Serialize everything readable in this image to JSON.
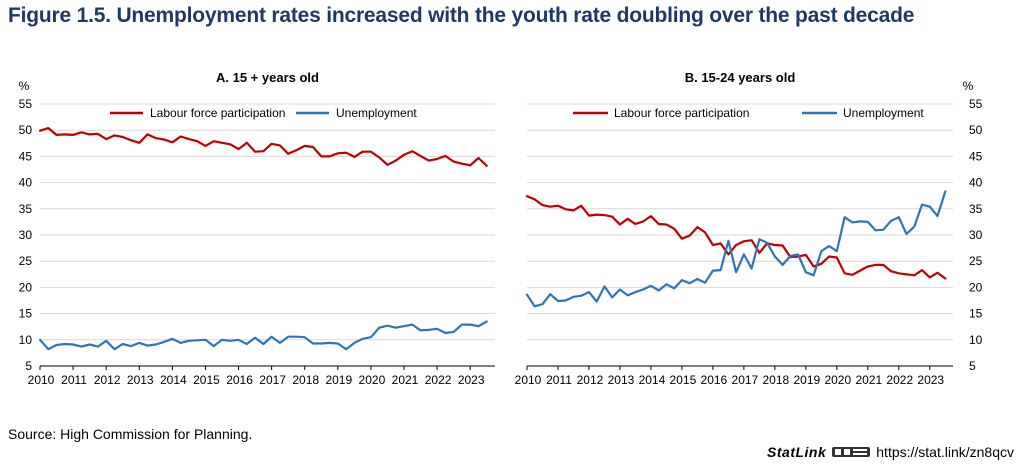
{
  "figure": {
    "title": "Figure 1.5. Unemployment rates increased with the youth rate doubling over the past decade",
    "source": "Source: High Commission for Planning.",
    "statlink_word": "StatLink",
    "statlink_url": "https://stat.link/zn8qcv",
    "colors": {
      "labour": "#c00000",
      "unemployment": "#2e75b6",
      "title": "#1f3864",
      "grid": "#d9d9d9"
    }
  },
  "chart_data": [
    {
      "type": "line",
      "title": "A. 15 + years old",
      "unit": "%",
      "ylim": [
        5,
        55
      ],
      "yticks": [
        5,
        10,
        15,
        20,
        25,
        30,
        35,
        40,
        45,
        50,
        55
      ],
      "xticks": [
        "2010",
        "2011",
        "2012",
        "2013",
        "2014",
        "2015",
        "2016",
        "2017",
        "2018",
        "2019",
        "2020",
        "2021",
        "2022",
        "2023"
      ],
      "x_start": 2010.0,
      "x_end": 2023.75,
      "x_step": 0.25,
      "grid": true,
      "legend": "top",
      "series": [
        {
          "name": "Labour force participation",
          "values": [
            49.9,
            50.4,
            49.1,
            49.2,
            49.1,
            49.6,
            49.2,
            49.3,
            48.3,
            49.0,
            48.7,
            48.1,
            47.6,
            49.2,
            48.5,
            48.2,
            47.7,
            48.8,
            48.3,
            47.9,
            47.0,
            47.9,
            47.6,
            47.3,
            46.4,
            47.6,
            45.9,
            46.0,
            47.4,
            47.1,
            45.5,
            46.2,
            47.0,
            46.8,
            45.0,
            45.0,
            45.6,
            45.7,
            44.9,
            45.9,
            45.9,
            44.8,
            43.4,
            44.2,
            45.3,
            46.0,
            45.1,
            44.2,
            44.5,
            45.1,
            44.0,
            43.6,
            43.3,
            44.7,
            43.2
          ]
        },
        {
          "name": "Unemployment",
          "values": [
            10.0,
            8.2,
            9.0,
            9.2,
            9.1,
            8.7,
            9.1,
            8.7,
            9.8,
            8.2,
            9.2,
            8.8,
            9.4,
            8.9,
            9.1,
            9.6,
            10.2,
            9.4,
            9.8,
            9.9,
            10.0,
            8.8,
            10.0,
            9.8,
            10.0,
            9.2,
            10.4,
            9.2,
            10.6,
            9.4,
            10.6,
            10.6,
            10.5,
            9.3,
            9.3,
            9.4,
            9.3,
            8.2,
            9.4,
            10.2,
            10.5,
            12.3,
            12.7,
            12.3,
            12.6,
            12.9,
            11.8,
            11.9,
            12.1,
            11.3,
            11.5,
            12.9,
            12.9,
            12.6,
            13.5
          ]
        }
      ]
    },
    {
      "type": "line",
      "title": "B. 15-24 years old",
      "unit": "%",
      "ylim": [
        5,
        55
      ],
      "yticks": [
        5,
        10,
        15,
        20,
        25,
        30,
        35,
        40,
        45,
        50,
        55
      ],
      "xticks": [
        "2010",
        "2011",
        "2012",
        "2013",
        "2014",
        "2015",
        "2016",
        "2017",
        "2018",
        "2019",
        "2020",
        "2021",
        "2022",
        "2023"
      ],
      "x_start": 2010.0,
      "x_end": 2023.75,
      "x_step": 0.25,
      "grid": true,
      "legend": "top",
      "series": [
        {
          "name": "Labour force participation",
          "values": [
            37.4,
            36.8,
            35.7,
            35.4,
            35.6,
            34.9,
            34.7,
            35.6,
            33.7,
            33.9,
            33.8,
            33.5,
            32.0,
            33.1,
            32.1,
            32.6,
            33.6,
            32.1,
            32.0,
            31.2,
            29.3,
            29.9,
            31.5,
            30.5,
            28.1,
            28.4,
            26.3,
            28.1,
            28.8,
            29.0,
            26.6,
            28.4,
            28.1,
            28.0,
            25.8,
            25.9,
            26.2,
            24.0,
            24.5,
            25.9,
            25.7,
            22.7,
            22.4,
            23.2,
            24.0,
            24.3,
            24.3,
            23.1,
            22.7,
            22.5,
            22.3,
            23.3,
            21.9,
            22.8,
            21.7
          ]
        },
        {
          "name": "Unemployment",
          "values": [
            18.6,
            16.4,
            16.8,
            18.7,
            17.4,
            17.5,
            18.2,
            18.4,
            19.1,
            17.3,
            20.2,
            18.1,
            19.6,
            18.5,
            19.1,
            19.6,
            20.3,
            19.4,
            20.6,
            19.8,
            21.4,
            20.8,
            21.6,
            20.9,
            23.2,
            23.3,
            28.9,
            22.9,
            26.3,
            23.6,
            29.2,
            28.5,
            25.9,
            24.3,
            26.0,
            26.3,
            22.9,
            22.3,
            26.9,
            27.9,
            26.9,
            33.4,
            32.4,
            32.6,
            32.5,
            30.9,
            31.0,
            32.7,
            33.4,
            30.2,
            31.6,
            35.8,
            35.4,
            33.6,
            38.3
          ]
        }
      ]
    }
  ]
}
